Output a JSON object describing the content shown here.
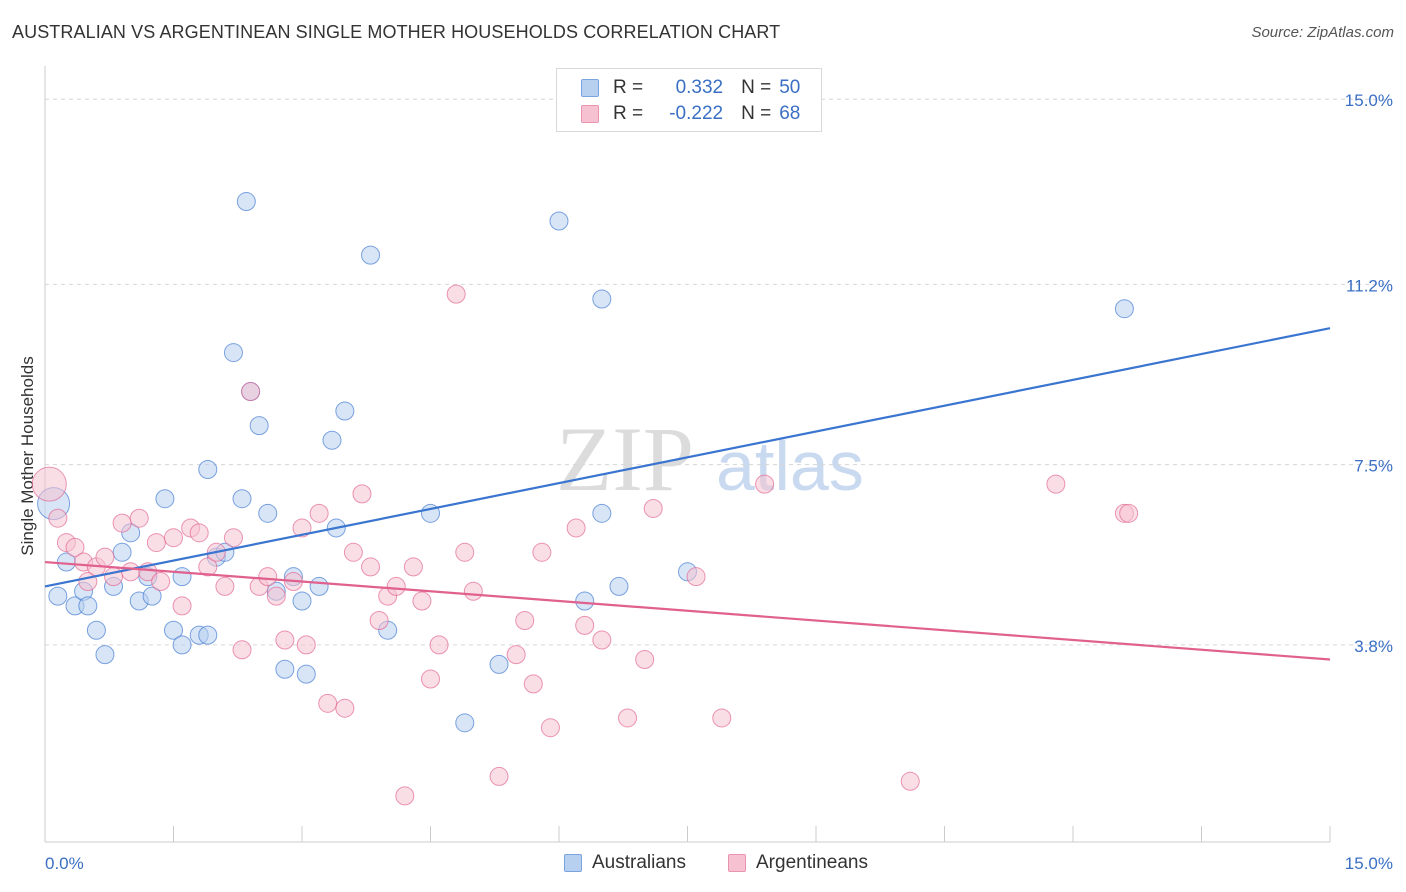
{
  "title": "AUSTRALIAN VS ARGENTINEAN SINGLE MOTHER HOUSEHOLDS CORRELATION CHART",
  "source": "Source: ZipAtlas.com",
  "colors": {
    "blue": "#3a75d0",
    "blue_fill": "#b8d0f0",
    "pink": "#e0608e",
    "pink_fill": "#f6c2d2",
    "tick_label": "#3a6fc4"
  },
  "legend": {
    "rows": [
      {
        "r_label": "R =",
        "r_value": "0.332",
        "n_label": "N =",
        "n_value": "50"
      },
      {
        "r_label": "R =",
        "r_value": "-0.222",
        "n_label": "N =",
        "n_value": "68"
      }
    ]
  },
  "watermark": {
    "zip": "ZIP",
    "atlas": "atlas"
  },
  "chart_data": {
    "type": "scatter",
    "title": "AUSTRALIAN VS ARGENTINEAN SINGLE MOTHER HOUSEHOLDS CORRELATION CHART",
    "xlabel": "",
    "ylabel": "Single Mother Households",
    "xlim": [
      0,
      15
    ],
    "ylim": [
      0,
      15.6
    ],
    "x_tick_labels": [
      "0.0%",
      "15.0%"
    ],
    "y_ticks": [
      3.8,
      7.5,
      11.2,
      15.0
    ],
    "y_tick_labels": [
      "3.8%",
      "7.5%",
      "11.2%",
      "15.0%"
    ],
    "grid": true,
    "legend_position": "top-center",
    "series": [
      {
        "name": "Australians",
        "color": "#3a75d0",
        "r": 0.332,
        "n": 50,
        "trend": [
          [
            0,
            5.0
          ],
          [
            15,
            10.3
          ]
        ],
        "points": [
          [
            0.1,
            6.7
          ],
          [
            0.15,
            4.8
          ],
          [
            0.25,
            5.5
          ],
          [
            0.35,
            4.6
          ],
          [
            0.45,
            4.9
          ],
          [
            0.5,
            4.6
          ],
          [
            0.6,
            4.1
          ],
          [
            0.7,
            3.6
          ],
          [
            0.8,
            5.0
          ],
          [
            0.9,
            5.7
          ],
          [
            1.0,
            6.1
          ],
          [
            1.1,
            4.7
          ],
          [
            1.2,
            5.2
          ],
          [
            1.25,
            4.8
          ],
          [
            1.4,
            6.8
          ],
          [
            1.5,
            4.1
          ],
          [
            1.6,
            5.2
          ],
          [
            1.6,
            3.8
          ],
          [
            1.8,
            4.0
          ],
          [
            1.9,
            4.0
          ],
          [
            1.9,
            7.4
          ],
          [
            2.0,
            5.6
          ],
          [
            2.1,
            5.7
          ],
          [
            2.2,
            9.8
          ],
          [
            2.3,
            6.8
          ],
          [
            2.35,
            12.9
          ],
          [
            2.4,
            9.0
          ],
          [
            2.5,
            8.3
          ],
          [
            2.6,
            6.5
          ],
          [
            2.7,
            4.9
          ],
          [
            2.8,
            3.3
          ],
          [
            2.9,
            5.2
          ],
          [
            3.0,
            4.7
          ],
          [
            3.05,
            3.2
          ],
          [
            3.2,
            5.0
          ],
          [
            3.35,
            8.0
          ],
          [
            3.4,
            6.2
          ],
          [
            3.5,
            8.6
          ],
          [
            3.8,
            11.8
          ],
          [
            4.0,
            4.1
          ],
          [
            4.5,
            6.5
          ],
          [
            4.9,
            2.2
          ],
          [
            5.3,
            3.4
          ],
          [
            6.0,
            12.5
          ],
          [
            6.3,
            4.7
          ],
          [
            6.5,
            6.5
          ],
          [
            6.5,
            10.9
          ],
          [
            6.7,
            5.0
          ],
          [
            7.5,
            5.3
          ],
          [
            12.6,
            10.7
          ]
        ]
      },
      {
        "name": "Argentineans",
        "color": "#e0608e",
        "r": -0.222,
        "n": 68,
        "trend": [
          [
            0,
            5.5
          ],
          [
            15,
            3.5
          ]
        ],
        "points": [
          [
            0.05,
            7.1
          ],
          [
            0.15,
            6.4
          ],
          [
            0.25,
            5.9
          ],
          [
            0.35,
            5.8
          ],
          [
            0.45,
            5.5
          ],
          [
            0.5,
            5.1
          ],
          [
            0.6,
            5.4
          ],
          [
            0.7,
            5.6
          ],
          [
            0.8,
            5.2
          ],
          [
            0.9,
            6.3
          ],
          [
            1.0,
            5.3
          ],
          [
            1.1,
            6.4
          ],
          [
            1.2,
            5.3
          ],
          [
            1.3,
            5.9
          ],
          [
            1.35,
            5.1
          ],
          [
            1.5,
            6.0
          ],
          [
            1.6,
            4.6
          ],
          [
            1.7,
            6.2
          ],
          [
            1.8,
            6.1
          ],
          [
            1.9,
            5.4
          ],
          [
            2.0,
            5.7
          ],
          [
            2.1,
            5.0
          ],
          [
            2.2,
            6.0
          ],
          [
            2.3,
            3.7
          ],
          [
            2.4,
            9.0
          ],
          [
            2.5,
            5.0
          ],
          [
            2.6,
            5.2
          ],
          [
            2.7,
            4.8
          ],
          [
            2.8,
            3.9
          ],
          [
            2.9,
            5.1
          ],
          [
            3.0,
            6.2
          ],
          [
            3.05,
            3.8
          ],
          [
            3.2,
            6.5
          ],
          [
            3.3,
            2.6
          ],
          [
            3.5,
            2.5
          ],
          [
            3.6,
            5.7
          ],
          [
            3.7,
            6.9
          ],
          [
            3.8,
            5.4
          ],
          [
            3.9,
            4.3
          ],
          [
            4.0,
            4.8
          ],
          [
            4.1,
            5.0
          ],
          [
            4.2,
            0.7
          ],
          [
            4.3,
            5.4
          ],
          [
            4.4,
            4.7
          ],
          [
            4.5,
            3.1
          ],
          [
            4.6,
            3.8
          ],
          [
            4.8,
            11.0
          ],
          [
            4.9,
            5.7
          ],
          [
            5.0,
            4.9
          ],
          [
            5.3,
            1.1
          ],
          [
            5.5,
            3.6
          ],
          [
            5.6,
            4.3
          ],
          [
            5.7,
            3.0
          ],
          [
            5.8,
            5.7
          ],
          [
            5.9,
            2.1
          ],
          [
            6.2,
            6.2
          ],
          [
            6.3,
            4.2
          ],
          [
            6.5,
            3.9
          ],
          [
            6.8,
            2.3
          ],
          [
            7.0,
            3.5
          ],
          [
            7.1,
            6.6
          ],
          [
            7.6,
            5.2
          ],
          [
            7.9,
            2.3
          ],
          [
            8.4,
            7.1
          ],
          [
            10.1,
            1.0
          ],
          [
            12.6,
            6.5
          ],
          [
            12.65,
            6.5
          ],
          [
            11.8,
            7.1
          ]
        ]
      }
    ]
  }
}
